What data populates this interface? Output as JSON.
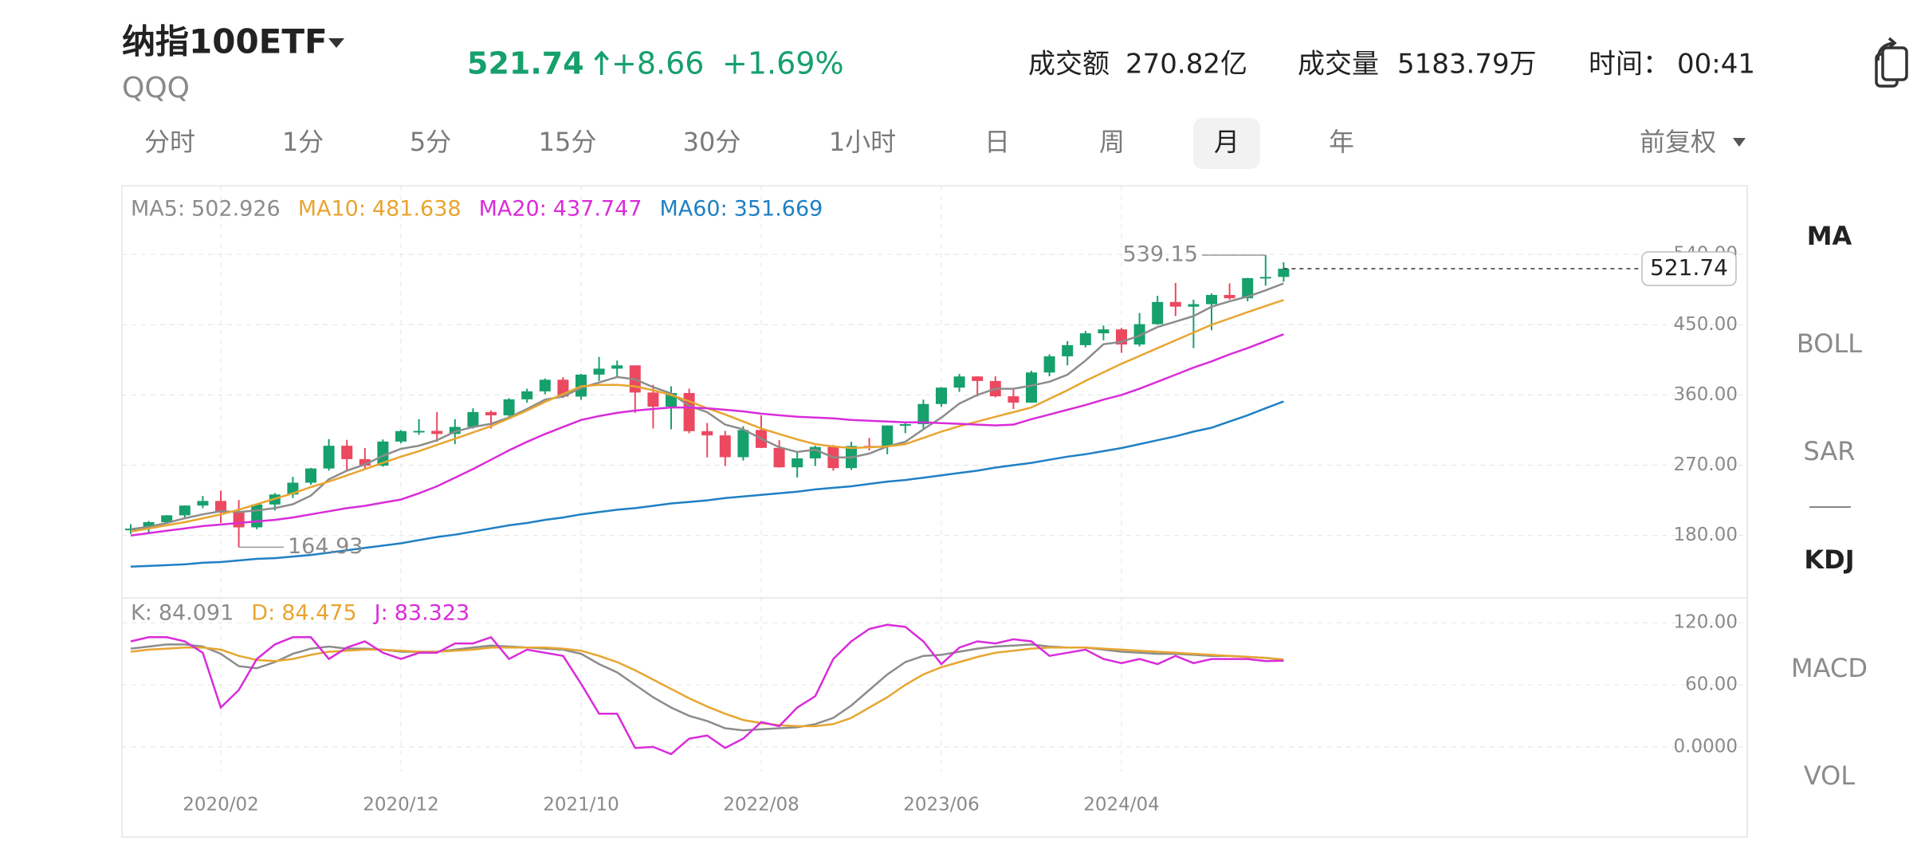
{
  "header": {
    "title": "纳指100ETF",
    "code": "QQQ",
    "price": "521.74",
    "change": "+8.66",
    "change_pct": "+1.69%",
    "turnover_label": "成交额",
    "turnover": "270.82亿",
    "volume_label": "成交量",
    "volume": "5183.79万",
    "time_label": "时间：",
    "time": "00:41"
  },
  "tabs": [
    "分时",
    "1分",
    "5分",
    "15分",
    "30分",
    "1小时",
    "日",
    "周",
    "月",
    "年"
  ],
  "active_tab": "月",
  "adjust": "前复权",
  "indicators": [
    "MA",
    "BOLL",
    "SAR",
    "KDJ",
    "MACD",
    "VOL"
  ],
  "active_indicators": [
    "MA",
    "KDJ"
  ],
  "chart_data": {
    "type": "candlestick",
    "categories": [
      null,
      null,
      null,
      null,
      null,
      "2020/02",
      null,
      null,
      null,
      null,
      null,
      null,
      null,
      null,
      null,
      "2020/12",
      null,
      null,
      null,
      null,
      null,
      null,
      null,
      null,
      null,
      "2021/10",
      null,
      null,
      null,
      null,
      null,
      null,
      null,
      null,
      null,
      "2022/08",
      null,
      null,
      null,
      null,
      null,
      null,
      null,
      null,
      null,
      "2023/06",
      null,
      null,
      null,
      null,
      null,
      null,
      null,
      null,
      null,
      "2024/04",
      null,
      null,
      null,
      null,
      null,
      null,
      null,
      null,
      null
    ],
    "open": [
      186.7,
      188.8,
      197.0,
      205.8,
      218.3,
      224.2,
      209.3,
      190.4,
      219.7,
      232.5,
      247.6,
      265.8,
      294.9,
      277.8,
      269.4,
      300.3,
      313.7,
      314.0,
      310.0,
      319.1,
      338.1,
      333.9,
      354.4,
      364.6,
      379.5,
      357.9,
      386.1,
      393.7,
      397.9,
      363.1,
      345.0,
      362.5,
      313.6,
      308.2,
      280.3,
      315.1,
      292.2,
      267.3,
      278.8,
      293.4,
      266.3,
      294.7,
      294.3,
      320.9,
      322.6,
      348.4,
      369.4,
      383.7,
      377.9,
      358.3,
      350.2,
      388.8,
      409.5,
      423.8,
      439.0,
      444.0,
      424.6,
      450.7,
      479.1,
      473.1,
      476.3,
      488.1,
      483.9,
      509.7,
      511.2
    ],
    "high": [
      194.4,
      198.5,
      206.0,
      218.6,
      230.6,
      237.5,
      225.5,
      221.0,
      234.4,
      255.0,
      266.5,
      303.5,
      302.5,
      292.0,
      303.0,
      315.0,
      329.0,
      338.0,
      329.0,
      342.8,
      340.0,
      356.0,
      368.0,
      381.0,
      382.8,
      387.0,
      408.7,
      404.0,
      398.0,
      373.0,
      371.0,
      368.0,
      324.0,
      314.0,
      320.0,
      334.0,
      302.0,
      287.0,
      295.0,
      296.0,
      300.0,
      305.0,
      321.0,
      326.0,
      354.0,
      370.0,
      387.0,
      384.0,
      384.0,
      367.0,
      391.0,
      412.0,
      429.0,
      442.0,
      449.0,
      446.0,
      465.0,
      487.0,
      503.5,
      482.0,
      490.0,
      503.0,
      510.0,
      539.15,
      530.0
    ],
    "low": [
      182.0,
      183.5,
      196.5,
      203.0,
      215.0,
      196.0,
      164.93,
      188.0,
      212.0,
      228.0,
      245.0,
      263.0,
      262.0,
      266.0,
      268.0,
      298.0,
      309.0,
      300.0,
      297.0,
      317.0,
      317.0,
      330.0,
      350.0,
      361.0,
      356.0,
      354.0,
      378.0,
      384.0,
      337.0,
      317.0,
      316.0,
      311.0,
      280.0,
      269.0,
      276.0,
      292.0,
      267.0,
      254.3,
      269.0,
      263.0,
      264.0,
      289.0,
      284.0,
      311.0,
      317.0,
      345.0,
      364.0,
      358.0,
      357.0,
      342.0,
      350.0,
      384.0,
      398.0,
      421.0,
      430.0,
      414.0,
      422.0,
      450.0,
      461.0,
      420.0,
      443.0,
      482.0,
      480.0,
      500.0,
      505.0
    ],
    "close": [
      188.8,
      197.0,
      205.8,
      218.3,
      224.2,
      209.3,
      190.4,
      219.7,
      232.5,
      247.6,
      265.8,
      294.9,
      277.8,
      269.4,
      300.3,
      313.7,
      314.0,
      310.0,
      319.1,
      338.1,
      333.9,
      354.4,
      364.6,
      379.5,
      357.9,
      386.1,
      393.7,
      397.9,
      363.1,
      345.0,
      362.5,
      313.6,
      308.2,
      280.3,
      315.1,
      292.2,
      267.3,
      278.8,
      293.4,
      266.3,
      294.7,
      294.3,
      320.9,
      322.6,
      348.4,
      369.4,
      383.7,
      377.9,
      358.3,
      350.2,
      388.8,
      409.5,
      423.8,
      439.0,
      444.0,
      424.6,
      450.7,
      479.1,
      473.1,
      476.3,
      488.1,
      483.9,
      509.7,
      511.2,
      521.74
    ],
    "up_color": "#16a06c",
    "down_color": "#ec4860",
    "series": [
      {
        "name": "MA5:",
        "color": "#8c8c8c",
        "values": [
          188,
          191,
          196,
          202,
          207,
          211,
          210,
          212,
          215,
          220,
          231,
          252,
          263,
          271,
          282,
          291,
          295,
          302,
          313,
          319,
          323,
          331,
          342,
          354,
          358,
          369,
          376,
          383,
          380,
          370,
          362,
          346,
          338,
          322,
          316,
          304,
          293,
          287,
          290,
          280,
          280,
          285,
          294,
          300,
          316,
          331,
          349,
          360,
          368,
          368,
          372,
          377,
          386,
          404,
          425,
          428,
          436,
          447,
          454,
          461,
          473,
          480,
          486,
          494,
          502.926
        ]
      },
      {
        "name": "MA10:",
        "color": "#e8a530",
        "values": [
          185,
          189,
          193,
          197,
          202,
          207,
          213,
          220,
          227,
          234,
          242,
          249,
          257,
          265,
          273,
          281,
          288,
          296,
          304,
          312,
          320,
          330,
          340,
          351,
          361,
          371,
          373,
          373,
          371,
          366,
          360,
          352,
          343,
          335,
          326,
          317,
          310,
          303,
          297,
          294,
          292,
          293,
          294,
          297,
          305,
          313,
          320,
          326,
          332,
          338,
          344,
          355,
          366,
          378,
          389,
          400,
          410,
          420,
          430,
          440,
          450,
          458,
          466,
          474,
          481.638
        ]
      },
      {
        "name": "MA20:",
        "color": "#d92cd9",
        "values": [
          180,
          183,
          186,
          189,
          192,
          194,
          196,
          198,
          200,
          203,
          207,
          211,
          215,
          218,
          222,
          226,
          234,
          243,
          254,
          265,
          277,
          289,
          300,
          310,
          319,
          328,
          333,
          337,
          340,
          342,
          344,
          344,
          343,
          341,
          339,
          336,
          334,
          332,
          331,
          330,
          328,
          327,
          326,
          325,
          325,
          324,
          323,
          322,
          321,
          322,
          329,
          335,
          341,
          347,
          354,
          360,
          368,
          377,
          386,
          395,
          403,
          412,
          420,
          429,
          437.747
        ]
      },
      {
        "name": "MA60:",
        "color": "#1f80c4",
        "values": [
          140,
          141,
          142,
          143,
          145,
          146,
          148,
          150,
          151,
          153,
          155,
          158,
          161,
          164,
          167,
          170,
          174,
          178,
          181,
          185,
          189,
          193,
          196,
          200,
          203,
          207,
          210,
          213,
          215,
          218,
          221,
          223,
          225,
          228,
          230,
          232,
          234,
          236,
          239,
          241,
          243,
          246,
          249,
          251,
          254,
          257,
          260,
          263,
          267,
          270,
          273,
          277,
          281,
          284,
          288,
          292,
          297,
          302,
          307,
          313,
          318,
          326,
          334,
          343,
          351.669
        ]
      }
    ],
    "ylim": [
      100,
      628
    ],
    "yticks": [
      {
        "value": 180,
        "label": "180.00"
      },
      {
        "value": 270,
        "label": "270.00"
      },
      {
        "value": 360,
        "label": "360.00"
      },
      {
        "value": 450,
        "label": "450.00"
      },
      {
        "value": 540,
        "label": "540.00"
      }
    ],
    "grid": true,
    "kdj": {
      "type": "line",
      "series": [
        {
          "name": "K:",
          "color": "#8c8c8c",
          "values": [
            95,
            97,
            99,
            99,
            97,
            90,
            78,
            76,
            82,
            90,
            95,
            97,
            95,
            95,
            94,
            92,
            92,
            92,
            94,
            96,
            98,
            97,
            96,
            95,
            94,
            90,
            80,
            72,
            60,
            48,
            38,
            30,
            25,
            18,
            16,
            17,
            18,
            19,
            22,
            28,
            40,
            55,
            70,
            82,
            88,
            89,
            92,
            95,
            97,
            98,
            99,
            97,
            96,
            96,
            94,
            92,
            91,
            90,
            90,
            89,
            88,
            88,
            87,
            86,
            84.091
          ]
        },
        {
          "name": "D:",
          "color": "#e8a530",
          "values": [
            92,
            94,
            95,
            96,
            96,
            94,
            88,
            84,
            83,
            85,
            89,
            92,
            93,
            94,
            94,
            93,
            92,
            92,
            93,
            94,
            96,
            96,
            96,
            96,
            95,
            93,
            88,
            82,
            74,
            65,
            56,
            47,
            39,
            32,
            26,
            23,
            21,
            20,
            20,
            22,
            28,
            38,
            48,
            60,
            70,
            77,
            82,
            87,
            91,
            93,
            95,
            96,
            96,
            96,
            95,
            94,
            93,
            92,
            91,
            90,
            89,
            88,
            87,
            86,
            84.475
          ]
        },
        {
          "name": "J:",
          "color": "#d92cd9",
          "values": [
            102,
            106,
            106,
            102,
            91,
            38,
            55,
            85,
            99,
            106,
            106,
            85,
            96,
            102,
            91,
            85,
            91,
            91,
            100,
            100,
            106,
            85,
            94,
            91,
            88,
            61,
            32,
            32,
            -1,
            0,
            -7,
            8,
            11,
            -1,
            8,
            24,
            20,
            38,
            49,
            85,
            102,
            114,
            118,
            116,
            102,
            80,
            96,
            102,
            100,
            104,
            102,
            88,
            91,
            94,
            85,
            81,
            85,
            80,
            88,
            81,
            85,
            85,
            85,
            83,
            83.323
          ]
        }
      ],
      "ylim": [
        -24,
        144
      ],
      "yticks": [
        {
          "value": 0,
          "label": "0.0000"
        },
        {
          "value": 60,
          "label": "60.00"
        },
        {
          "value": 120,
          "label": "120.00"
        }
      ],
      "grid": true
    }
  }
}
